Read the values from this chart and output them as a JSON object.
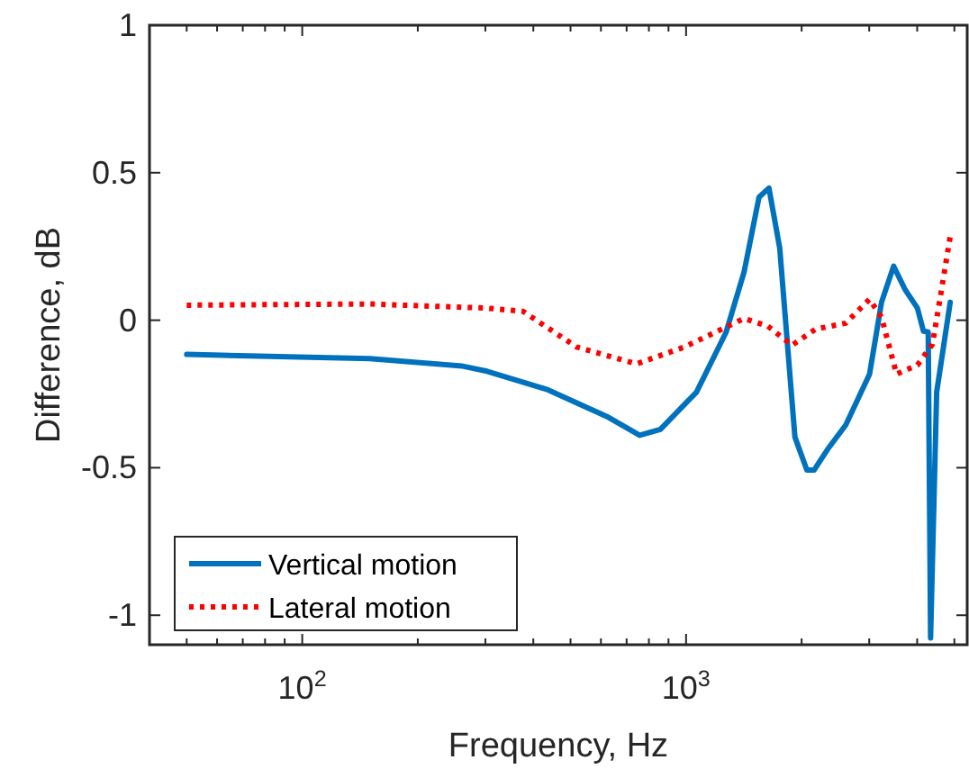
{
  "chart_data": {
    "type": "line",
    "xlabel": "Frequency, Hz",
    "ylabel": "Difference, dB",
    "log": "x",
    "xlim": [
      40,
      5400
    ],
    "ylim": [
      -1.1,
      1
    ],
    "xticks": [
      {
        "value": 40,
        "label": null
      },
      {
        "value": 50,
        "label": null
      },
      {
        "value": 60,
        "label": null
      },
      {
        "value": 70,
        "label": null
      },
      {
        "value": 80,
        "label": null
      },
      {
        "value": 90,
        "label": null
      },
      {
        "value": 100,
        "label": "10$^{2}$"
      },
      {
        "value": 200,
        "label": null
      },
      {
        "value": 300,
        "label": null
      },
      {
        "value": 400,
        "label": null
      },
      {
        "value": 500,
        "label": null
      },
      {
        "value": 600,
        "label": null
      },
      {
        "value": 700,
        "label": null
      },
      {
        "value": 800,
        "label": null
      },
      {
        "value": 900,
        "label": null
      },
      {
        "value": 1000,
        "label": "10$^{3}$"
      },
      {
        "value": 2000,
        "label": null
      },
      {
        "value": 3000,
        "label": null
      },
      {
        "value": 4000,
        "label": null
      },
      {
        "value": 5000,
        "label": null
      }
    ],
    "yticks": [
      -1,
      -0.5,
      0,
      0.5,
      1
    ],
    "grid": false,
    "legend": "bottom left",
    "marker": "none",
    "series": [
      {
        "name": "Vertical motion",
        "color": "#0072bd",
        "line_style": "solid",
        "x": [
          50,
          150,
          260,
          303,
          433,
          621,
          757,
          857,
          1064,
          1272,
          1416,
          1549,
          1644,
          1754,
          1921,
          2064,
          2155,
          2339,
          2606,
          3006,
          3230,
          3473,
          3727,
          4006,
          4153,
          4274,
          4335,
          4496,
          4877
        ],
        "values": [
          -0.116,
          -0.13,
          -0.155,
          -0.173,
          -0.234,
          -0.326,
          -0.39,
          -0.37,
          -0.244,
          -0.04,
          0.163,
          0.417,
          0.448,
          0.244,
          -0.396,
          -0.508,
          -0.508,
          -0.437,
          -0.355,
          -0.183,
          0.061,
          0.183,
          0.102,
          0.041,
          -0.037,
          -0.04,
          -1.077,
          -0.244,
          0.061
        ]
      },
      {
        "name": "Lateral motion",
        "color": "#ff0000",
        "line_style": "dotted",
        "x": [
          50,
          150,
          303,
          376,
          519,
          743,
          989,
          1416,
          1633,
          1887,
          2178,
          2606,
          3006,
          3230,
          3535,
          4006,
          4385,
          4710,
          4877
        ],
        "values": [
          0.051,
          0.055,
          0.041,
          0.03,
          -0.091,
          -0.148,
          -0.091,
          0.006,
          -0.02,
          -0.085,
          -0.03,
          -0.01,
          0.071,
          0.01,
          -0.183,
          -0.152,
          -0.081,
          0.163,
          0.285
        ]
      }
    ]
  }
}
